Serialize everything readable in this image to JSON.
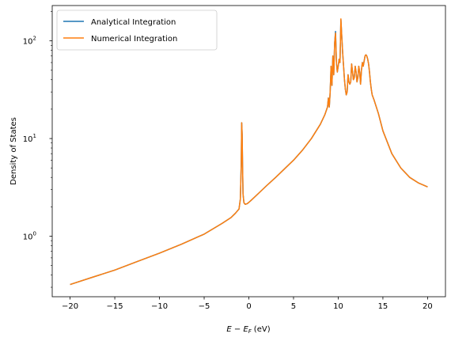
{
  "chart_data": {
    "type": "line",
    "title": "",
    "xlabel_main": "E − E",
    "xlabel_sub": "F",
    "xlabel_unit": "(eV)",
    "ylabel": "Density of States",
    "xlim": [
      -22,
      22
    ],
    "ylim": [
      0.24,
      230
    ],
    "yscale": "log",
    "grid": false,
    "legend_placement": "top-left",
    "x_ticks": [
      -20,
      -15,
      -10,
      -5,
      0,
      5,
      10,
      15,
      20
    ],
    "x_tick_labels": [
      "−20",
      "−15",
      "−10",
      "−5",
      "0",
      "5",
      "10",
      "15",
      "20"
    ],
    "y_ticks": [
      1,
      10,
      100
    ],
    "y_tick_base": "10",
    "y_tick_exponents": [
      "0",
      "1",
      "2"
    ],
    "series": [
      {
        "name": "Analytical Integration",
        "color": "#1f77b4",
        "x": [
          -20,
          -17.5,
          -15,
          -12.5,
          -10,
          -7.5,
          -5,
          -3,
          -2,
          -1.5,
          -1.1,
          -0.95,
          -0.85,
          -0.8,
          -0.75,
          -0.7,
          -0.65,
          -0.55,
          -0.4,
          -0.2,
          0,
          0.3,
          1,
          2,
          3,
          4,
          5,
          6,
          7,
          8,
          8.5,
          8.8,
          8.9,
          9.0,
          9.1,
          9.2,
          9.3,
          9.4,
          9.5,
          9.6,
          9.7,
          9.8,
          9.9,
          10.0,
          10.1,
          10.2,
          10.3,
          10.4,
          10.5,
          10.6,
          10.7,
          10.8,
          10.9,
          11.0,
          11.1,
          11.2,
          11.3,
          11.4,
          11.5,
          11.6,
          11.7,
          11.8,
          11.9,
          12.0,
          12.1,
          12.2,
          12.3,
          12.4,
          12.5,
          12.6,
          12.7,
          12.8,
          12.9,
          13.0,
          13.1,
          13.2,
          13.3,
          13.4,
          13.5,
          13.6,
          13.7,
          13.8,
          14,
          14.5,
          15,
          16,
          17,
          18,
          19,
          20
        ],
        "y": [
          0.32,
          0.38,
          0.45,
          0.55,
          0.67,
          0.83,
          1.05,
          1.35,
          1.55,
          1.72,
          1.9,
          2.4,
          5.5,
          14.5,
          11.0,
          5.0,
          2.7,
          2.2,
          2.12,
          2.15,
          2.22,
          2.35,
          2.7,
          3.3,
          4.0,
          4.9,
          6.0,
          7.6,
          10.0,
          14.0,
          17.5,
          21.0,
          26.0,
          21.0,
          30.0,
          55.0,
          35.0,
          70.0,
          45.0,
          95.0,
          125.0,
          60.0,
          48.0,
          55.0,
          65.0,
          60.0,
          165.0,
          110.0,
          75.0,
          55.0,
          40.0,
          32.0,
          28.0,
          30.0,
          45.0,
          38.0,
          36.0,
          38.0,
          58.0,
          48.0,
          40.0,
          42.0,
          55.0,
          48.0,
          38.0,
          42.0,
          55.0,
          48.0,
          36.0,
          50.0,
          60.0,
          55.0,
          62.0,
          70.0,
          72.0,
          70.0,
          65.0,
          58.0,
          48.0,
          38.0,
          32.0,
          28.0,
          25.0,
          18.0,
          12.0,
          7.0,
          5.0,
          4.0,
          3.5,
          3.2
        ]
      },
      {
        "name": "Numerical Integration",
        "color": "#ff7f0e",
        "x": [
          -20,
          -17.5,
          -15,
          -12.5,
          -10,
          -7.5,
          -5,
          -3,
          -2,
          -1.5,
          -1.1,
          -0.95,
          -0.85,
          -0.8,
          -0.75,
          -0.7,
          -0.65,
          -0.55,
          -0.4,
          -0.2,
          0,
          0.3,
          1,
          2,
          3,
          4,
          5,
          6,
          7,
          8,
          8.5,
          8.8,
          8.9,
          9.0,
          9.1,
          9.2,
          9.3,
          9.4,
          9.5,
          9.6,
          9.7,
          9.8,
          9.9,
          10.0,
          10.1,
          10.2,
          10.3,
          10.4,
          10.5,
          10.6,
          10.7,
          10.8,
          10.9,
          11.0,
          11.1,
          11.2,
          11.3,
          11.4,
          11.5,
          11.6,
          11.7,
          11.8,
          11.9,
          12.0,
          12.1,
          12.2,
          12.3,
          12.4,
          12.5,
          12.6,
          12.7,
          12.8,
          12.9,
          13.0,
          13.1,
          13.2,
          13.3,
          13.4,
          13.5,
          13.6,
          13.7,
          13.8,
          14,
          14.5,
          15,
          16,
          17,
          18,
          19,
          20
        ],
        "y": [
          0.32,
          0.38,
          0.45,
          0.55,
          0.67,
          0.83,
          1.05,
          1.35,
          1.55,
          1.72,
          1.9,
          2.4,
          5.5,
          14.5,
          11.0,
          5.0,
          2.7,
          2.2,
          2.12,
          2.15,
          2.22,
          2.35,
          2.7,
          3.3,
          4.0,
          4.9,
          6.0,
          7.6,
          10.0,
          14.0,
          17.5,
          21.0,
          26.0,
          21.0,
          30.0,
          55.0,
          35.0,
          70.0,
          45.0,
          95.0,
          120.0,
          60.0,
          48.0,
          55.0,
          65.0,
          60.0,
          168.0,
          110.0,
          75.0,
          55.0,
          40.0,
          32.0,
          28.0,
          30.0,
          45.0,
          38.0,
          36.0,
          38.0,
          58.0,
          48.0,
          40.0,
          42.0,
          55.0,
          48.0,
          38.0,
          42.0,
          55.0,
          48.0,
          36.0,
          50.0,
          60.0,
          55.0,
          62.0,
          70.0,
          72.0,
          70.0,
          65.0,
          58.0,
          48.0,
          38.0,
          32.0,
          28.0,
          25.0,
          18.0,
          12.0,
          7.0,
          5.0,
          4.0,
          3.5,
          3.2
        ]
      }
    ]
  }
}
